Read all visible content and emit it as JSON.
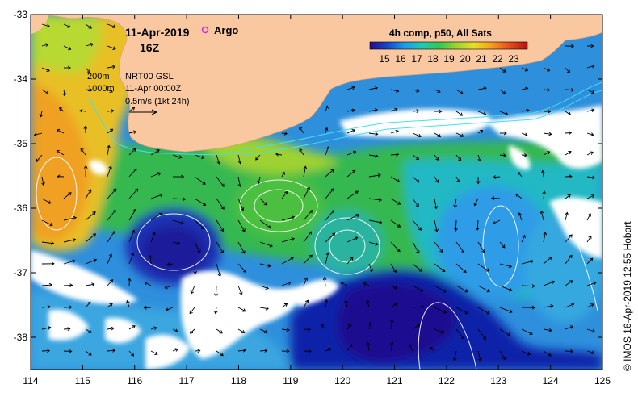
{
  "title": {
    "date": "11-Apr-2019",
    "hour": "16Z",
    "argo_label": "Argo"
  },
  "colorbar": {
    "title": "4h comp, p50, All Sats",
    "ticks": [
      "15",
      "16",
      "17",
      "18",
      "19",
      "20",
      "21",
      "22",
      "23"
    ],
    "colors": [
      "#2a0a8a",
      "#1446c8",
      "#1e9be6",
      "#22c8b4",
      "#32c850",
      "#9ed232",
      "#e6e028",
      "#f5a01e",
      "#e6501e",
      "#b41414"
    ]
  },
  "info": {
    "isobath_200": "200m",
    "isobath_1000": "1000m",
    "altimetry_line1": "NRT00 GSL",
    "altimetry_line2": "11-Apr 00:00Z",
    "vector_scale": "0.5m/s (1kt 24h)"
  },
  "credit": "© IMOS 16-Apr-2019 12:55 Hobart",
  "axes": {
    "x_ticks": [
      "114",
      "115",
      "116",
      "117",
      "118",
      "119",
      "120",
      "121",
      "122",
      "123",
      "124",
      "125"
    ],
    "y_ticks": [
      "-33",
      "-34",
      "-35",
      "-36",
      "-37",
      "-38"
    ]
  },
  "map_extent": {
    "lon": [
      114,
      125
    ],
    "lat": [
      -38.5,
      -33
    ]
  },
  "land_color": "#fac8a0"
}
